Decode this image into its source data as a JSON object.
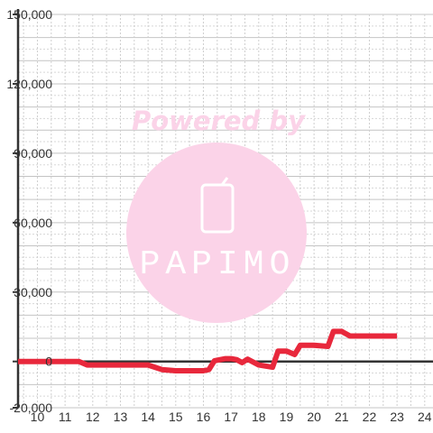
{
  "watermark": {
    "powered_text": "Powered by",
    "logo_text": "PAPIMO",
    "color": "#fbd3e8"
  },
  "chart_data": {
    "type": "line",
    "title": "",
    "xlabel": "",
    "ylabel": "",
    "xlim": [
      9.3,
      24.3
    ],
    "ylim": [
      -20000,
      150000
    ],
    "x_ticks": [
      10,
      11,
      12,
      13,
      14,
      15,
      16,
      17,
      18,
      19,
      20,
      21,
      22,
      23,
      24
    ],
    "x_tick_labels": [
      "10",
      "11",
      "12",
      "13",
      "14",
      "15",
      "16",
      "17",
      "18",
      "19",
      "20",
      "21",
      "22",
      "23",
      "24"
    ],
    "y_ticks": [
      -20000,
      0,
      30000,
      60000,
      90000,
      120000,
      150000
    ],
    "y_tick_labels": [
      "-20,000",
      "0",
      "30,000",
      "60,000",
      "90,000",
      "120,000",
      "150,000"
    ],
    "grid": true,
    "series": [
      {
        "color": "#e8283c",
        "x": [
          9.3,
          11.5,
          11.8,
          12.5,
          13.5,
          14.0,
          14.5,
          15.0,
          15.5,
          16.0,
          16.2,
          16.4,
          16.8,
          17.0,
          17.2,
          17.4,
          17.6,
          18.0,
          18.5,
          18.7,
          19.0,
          19.3,
          19.5,
          20.0,
          20.5,
          20.7,
          21.0,
          21.3,
          22.0,
          22.5,
          23.0
        ],
        "y": [
          0,
          0,
          -1500,
          -1500,
          -1500,
          -1500,
          -3500,
          -4000,
          -4000,
          -4000,
          -3500,
          300,
          1200,
          1200,
          800,
          -500,
          1000,
          -1500,
          -2500,
          4500,
          4500,
          3000,
          7000,
          7000,
          6500,
          13000,
          13000,
          11000,
          11000,
          11000,
          11000
        ]
      }
    ]
  }
}
